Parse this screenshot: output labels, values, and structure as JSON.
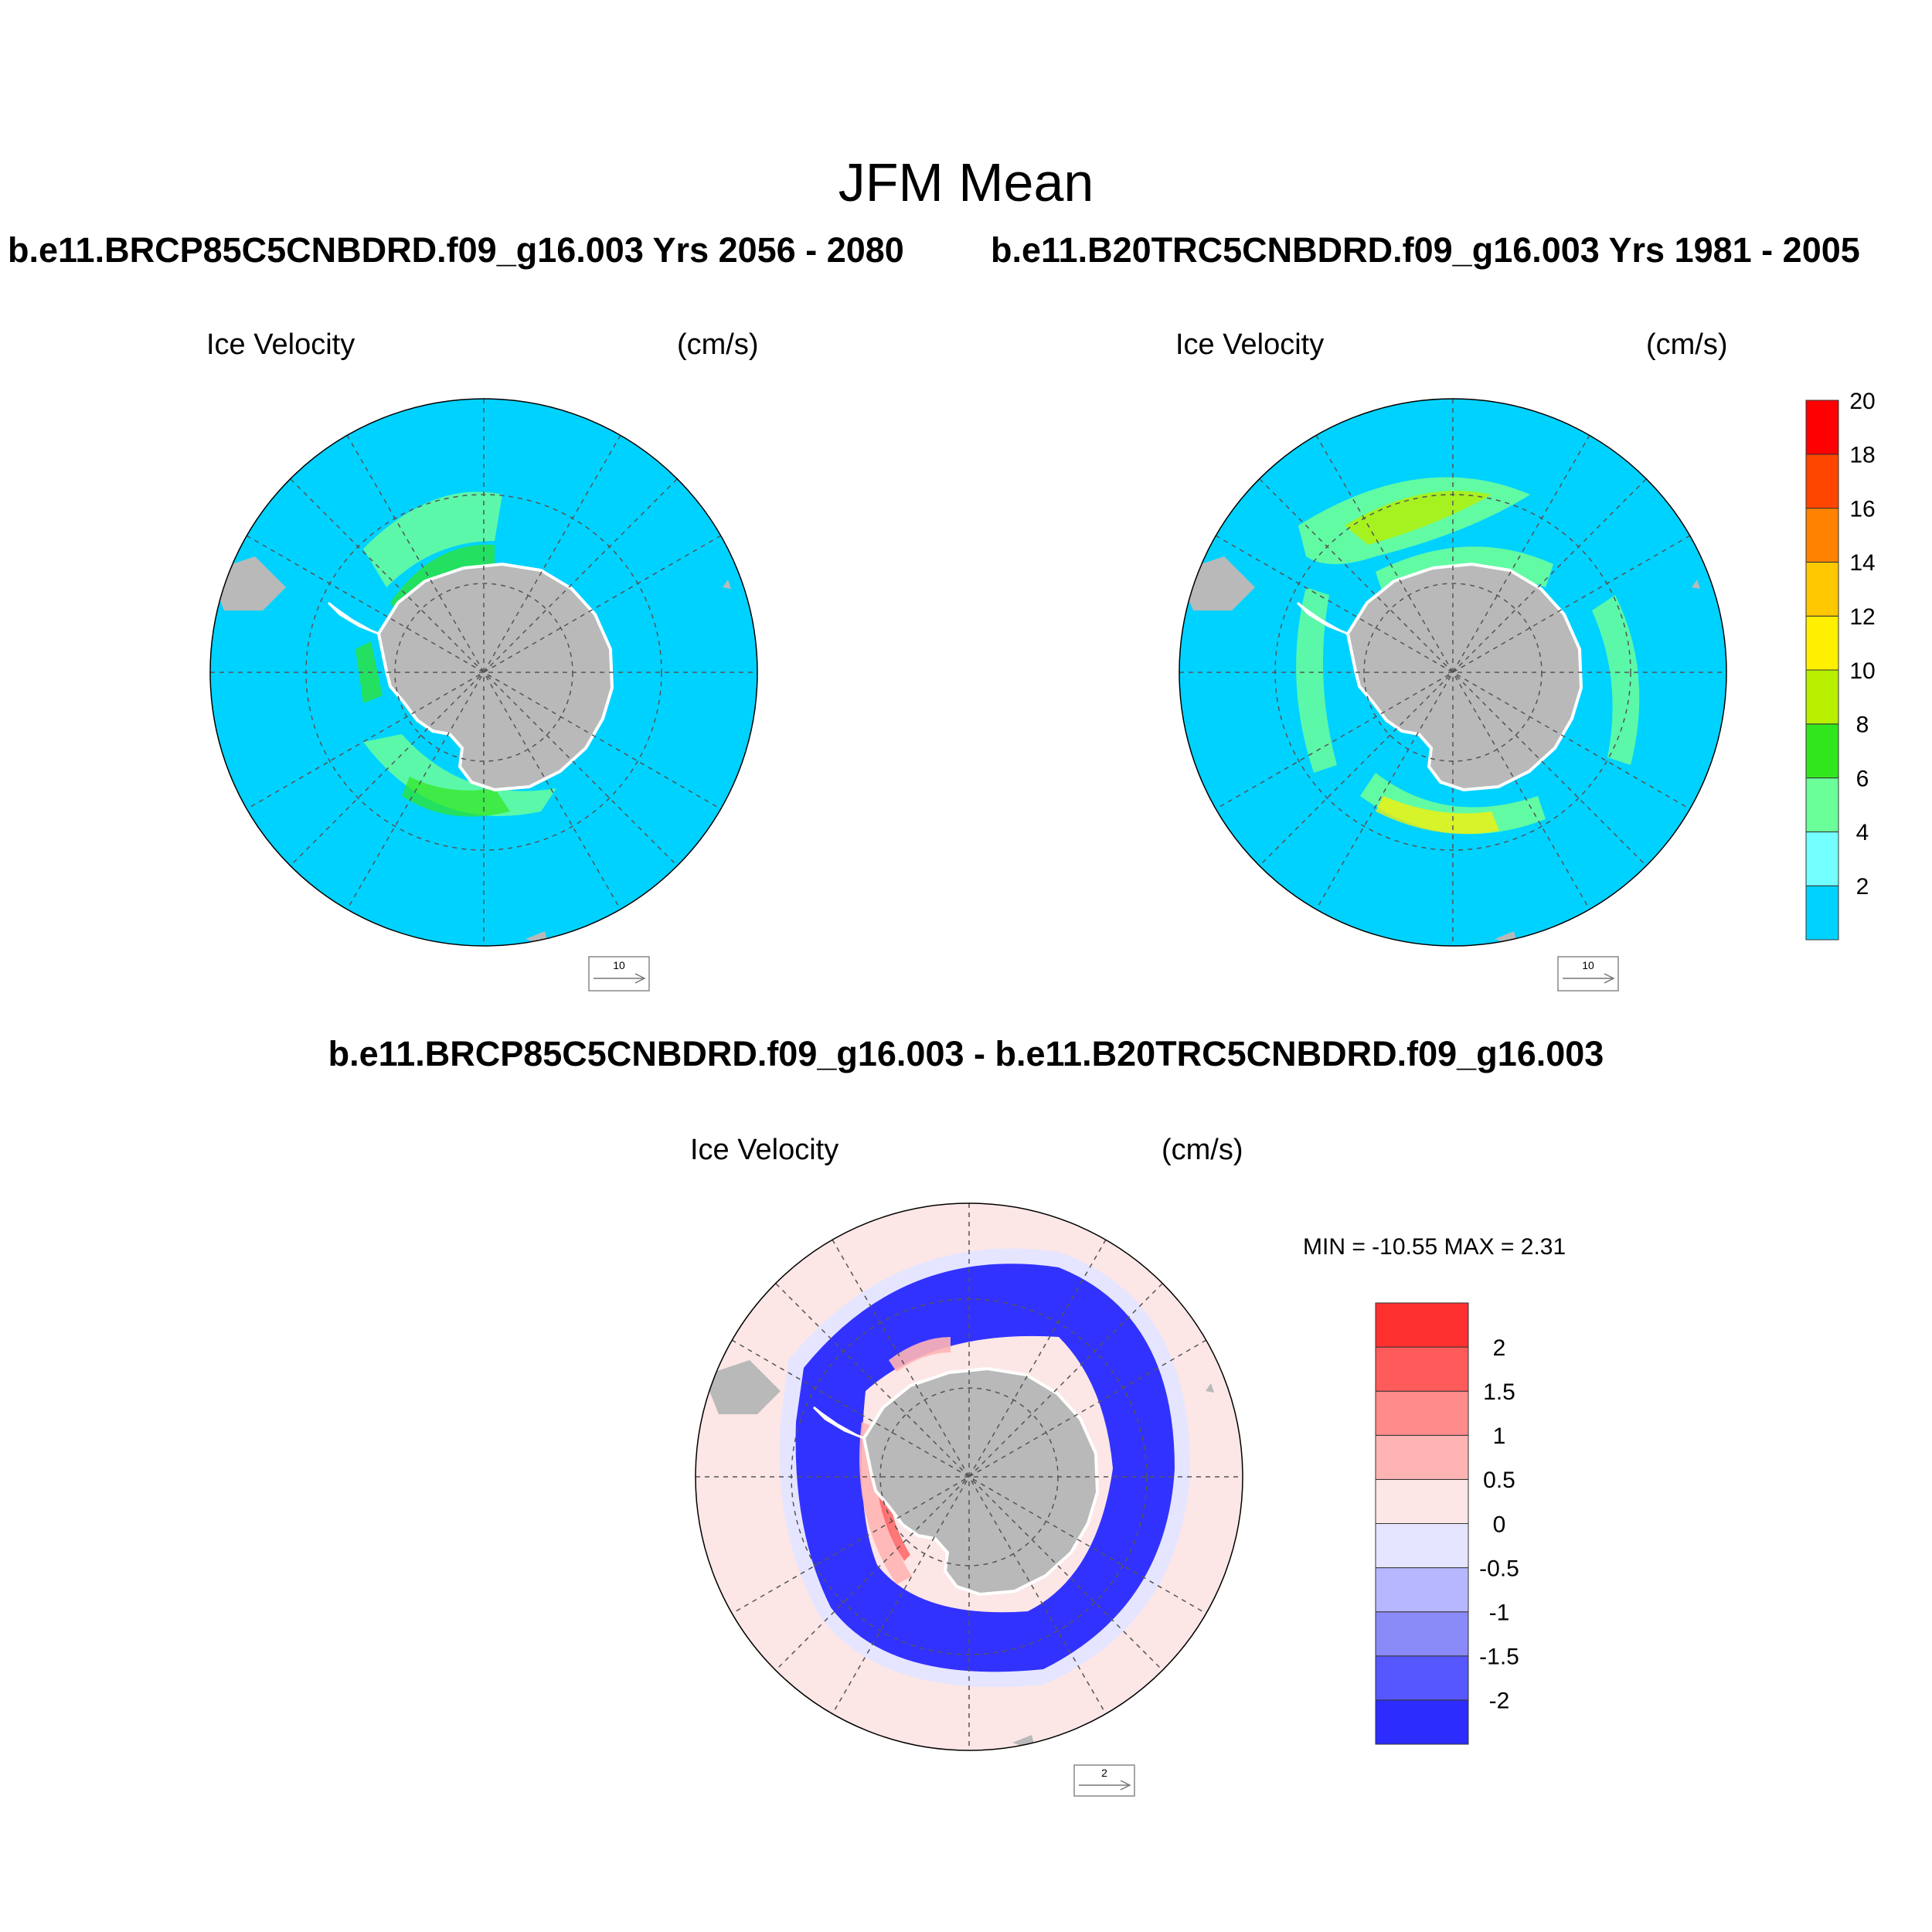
{
  "figure": {
    "title": "JFM Mean",
    "top_left_case": "b.e11.BRCP85C5CNBDRD.f09_g16.003  Yrs 2056 - 2080",
    "top_right_case": "b.e11.B20TRC5CNBDRD.f09_g16.003  Yrs 1981 - 2005",
    "diff_title": "b.e11.BRCP85C5CNBDRD.f09_g16.003 - b.e11.B20TRC5CNBDRD.f09_g16.003"
  },
  "panels": {
    "top_left": {
      "variable": "Ice Velocity",
      "units": "(cm/s)",
      "ref_vector": "10"
    },
    "top_right": {
      "variable": "Ice Velocity",
      "units": "(cm/s)",
      "ref_vector": "10"
    },
    "diff": {
      "variable": "Ice Velocity",
      "units": "(cm/s)",
      "ref_vector": "2",
      "min_max": "MIN = -10.55 MAX =   2.31"
    }
  },
  "colors": {
    "ocean": "#00d2ff",
    "land": "#b9b9b9",
    "diff_background": "#fde6e6",
    "diff_negative": "#3232ff"
  },
  "colorbars": {
    "main": {
      "colors": [
        "#00d2ff",
        "#73ffff",
        "#6bff9a",
        "#32e61e",
        "#b8f000",
        "#fff000",
        "#ffc800",
        "#ff8200",
        "#ff4600",
        "#ff0000"
      ],
      "labels": [
        "2",
        "4",
        "6",
        "8",
        "10",
        "12",
        "14",
        "16",
        "18",
        "20"
      ]
    },
    "diff": {
      "colors": [
        "#2c2cff",
        "#5757ff",
        "#8a8af9",
        "#b7b7ff",
        "#e5e5ff",
        "#fde6e6",
        "#ffb4b4",
        "#ff8b8b",
        "#ff5b5b",
        "#ff3030"
      ],
      "labels": [
        "-2",
        "-1.5",
        "-1",
        "-0.5",
        "0",
        "0.5",
        "1",
        "1.5",
        "2"
      ]
    }
  }
}
